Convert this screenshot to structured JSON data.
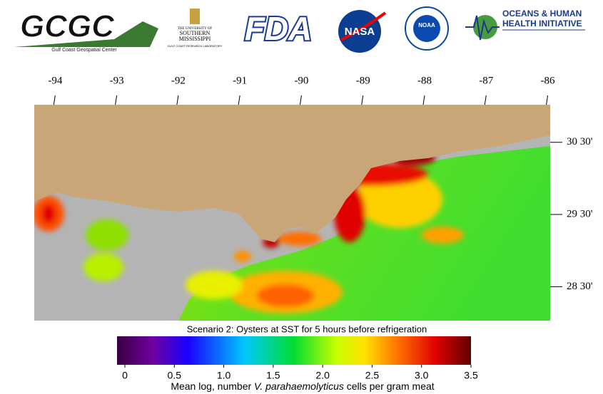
{
  "header": {
    "logos": [
      {
        "name": "GCGC",
        "subtitle": "Gulf Coast Geospatial Center"
      },
      {
        "name": "THE UNIVERSITY OF",
        "subtitle": "SOUTHERN",
        "extra": "MISSISSIPPI",
        "note": "GULF COAST RESEARCH LABORATORY"
      },
      {
        "name": "FDA"
      },
      {
        "name": "NASA"
      },
      {
        "name": "NOAA"
      },
      {
        "name": "OCEANS & HUMAN",
        "subtitle": "HEALTH INITIATIVE"
      }
    ]
  },
  "map": {
    "xlim": [
      -94.34,
      -85.96
    ],
    "ylim": [
      28.03,
      31.02
    ],
    "xticks": [
      -94,
      -93,
      -92,
      -91,
      -90,
      -89,
      -88,
      -87,
      -86
    ],
    "yticks": [
      {
        "value": 30.5,
        "label": "30 30'"
      },
      {
        "value": 29.5,
        "label": "29 30'"
      },
      {
        "value": 28.5,
        "label": "28 30'"
      }
    ],
    "caption": "Scenario 2: Oysters at SST for 5 hours before refrigeration"
  },
  "colorbar": {
    "lim": [
      0,
      3.5
    ],
    "ticks": [
      0,
      0.5,
      {
        "value": 1,
        "label": "1.0"
      },
      1.5,
      {
        "value": 2,
        "label": "2.0"
      },
      2.5,
      {
        "value": 3,
        "label": "3.0"
      },
      3.5
    ],
    "label": [
      "Mean log, number ",
      "V. parahaemolyticus",
      " cells per gram meat"
    ]
  }
}
